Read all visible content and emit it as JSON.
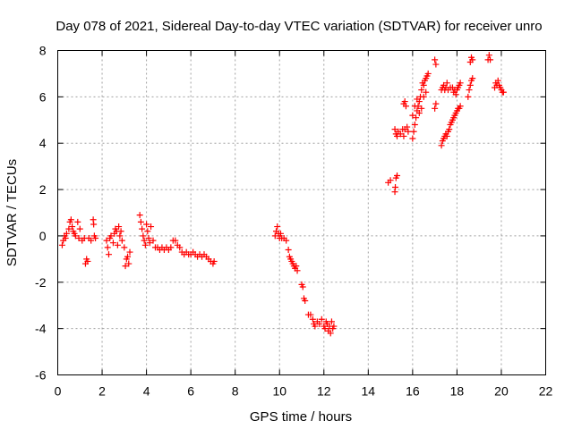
{
  "chart_data": {
    "type": "scatter",
    "title": "Day 078 of 2021, Sidereal Day-to-day VTEC variation (SDTVAR) for receiver unro",
    "xlabel": "GPS time / hours",
    "ylabel": "SDTVAR / TECUs",
    "xlim": [
      0,
      22
    ],
    "ylim": [
      -6,
      8
    ],
    "xticks": [
      0,
      2,
      4,
      6,
      8,
      10,
      12,
      14,
      16,
      18,
      20,
      22
    ],
    "yticks": [
      -6,
      -4,
      -2,
      0,
      2,
      4,
      6,
      8
    ],
    "xtick_labels": [
      "0",
      "2",
      "4",
      "6",
      "8",
      "10",
      "12",
      "14",
      "16",
      "18",
      "20",
      "22"
    ],
    "ytick_labels": [
      "-6",
      "-4",
      "-2",
      "0",
      "2",
      "4",
      "6",
      "8"
    ],
    "grid": true,
    "marker": "+",
    "color": "#ff0000",
    "series": [
      {
        "name": "SDTVAR",
        "points": [
          [
            0.2,
            -0.4
          ],
          [
            0.25,
            -0.2
          ],
          [
            0.3,
            0.0
          ],
          [
            0.35,
            -0.1
          ],
          [
            0.4,
            0.1
          ],
          [
            0.5,
            0.3
          ],
          [
            0.55,
            0.6
          ],
          [
            0.6,
            0.7
          ],
          [
            0.65,
            0.4
          ],
          [
            0.7,
            0.2
          ],
          [
            0.75,
            0.1
          ],
          [
            0.8,
            0.0
          ],
          [
            0.9,
            0.6
          ],
          [
            0.95,
            -0.1
          ],
          [
            1.0,
            0.3
          ],
          [
            1.1,
            -0.2
          ],
          [
            1.2,
            -0.1
          ],
          [
            1.25,
            -1.2
          ],
          [
            1.3,
            -1.0
          ],
          [
            1.35,
            -1.1
          ],
          [
            1.4,
            -0.1
          ],
          [
            1.5,
            -0.2
          ],
          [
            1.6,
            0.7
          ],
          [
            1.62,
            0.5
          ],
          [
            1.65,
            0.0
          ],
          [
            1.7,
            -0.1
          ],
          [
            2.2,
            -0.2
          ],
          [
            2.25,
            -0.5
          ],
          [
            2.3,
            -0.8
          ],
          [
            2.35,
            -0.1
          ],
          [
            2.4,
            0.0
          ],
          [
            2.5,
            -0.3
          ],
          [
            2.55,
            0.1
          ],
          [
            2.6,
            0.3
          ],
          [
            2.65,
            0.2
          ],
          [
            2.7,
            -0.4
          ],
          [
            2.75,
            0.4
          ],
          [
            2.8,
            0.0
          ],
          [
            2.85,
            0.2
          ],
          [
            2.9,
            -0.2
          ],
          [
            3.0,
            -0.5
          ],
          [
            3.05,
            -1.3
          ],
          [
            3.1,
            -1.0
          ],
          [
            3.15,
            -0.9
          ],
          [
            3.2,
            -1.2
          ],
          [
            3.25,
            -0.7
          ],
          [
            3.7,
            0.9
          ],
          [
            3.75,
            0.6
          ],
          [
            3.8,
            0.3
          ],
          [
            3.85,
            0.0
          ],
          [
            3.9,
            -0.2
          ],
          [
            3.95,
            -0.4
          ],
          [
            4.0,
            0.5
          ],
          [
            4.05,
            0.2
          ],
          [
            4.1,
            -0.1
          ],
          [
            4.15,
            -0.3
          ],
          [
            4.2,
            0.4
          ],
          [
            4.3,
            -0.2
          ],
          [
            4.4,
            -0.5
          ],
          [
            4.5,
            -0.5
          ],
          [
            4.6,
            -0.6
          ],
          [
            4.7,
            -0.5
          ],
          [
            4.8,
            -0.6
          ],
          [
            4.9,
            -0.5
          ],
          [
            5.0,
            -0.6
          ],
          [
            5.1,
            -0.5
          ],
          [
            5.2,
            -0.2
          ],
          [
            5.3,
            -0.2
          ],
          [
            5.4,
            -0.4
          ],
          [
            5.5,
            -0.5
          ],
          [
            5.6,
            -0.7
          ],
          [
            5.7,
            -0.8
          ],
          [
            5.8,
            -0.7
          ],
          [
            5.9,
            -0.8
          ],
          [
            6.0,
            -0.8
          ],
          [
            6.1,
            -0.7
          ],
          [
            6.2,
            -0.8
          ],
          [
            6.3,
            -0.9
          ],
          [
            6.4,
            -0.8
          ],
          [
            6.5,
            -0.9
          ],
          [
            6.6,
            -0.8
          ],
          [
            6.7,
            -0.9
          ],
          [
            6.8,
            -1.0
          ],
          [
            6.9,
            -1.1
          ],
          [
            7.0,
            -1.2
          ],
          [
            7.05,
            -1.1
          ],
          [
            9.8,
            0.0
          ],
          [
            9.85,
            0.2
          ],
          [
            9.9,
            0.4
          ],
          [
            9.95,
            0.1
          ],
          [
            10.0,
            -0.1
          ],
          [
            10.05,
            0.1
          ],
          [
            10.1,
            -0.1
          ],
          [
            10.2,
            -0.1
          ],
          [
            10.3,
            -0.2
          ],
          [
            10.4,
            -0.6
          ],
          [
            10.45,
            -0.9
          ],
          [
            10.5,
            -1.0
          ],
          [
            10.55,
            -1.1
          ],
          [
            10.6,
            -1.2
          ],
          [
            10.65,
            -1.3
          ],
          [
            10.7,
            -1.4
          ],
          [
            10.75,
            -1.3
          ],
          [
            10.8,
            -1.5
          ],
          [
            11.0,
            -2.1
          ],
          [
            11.05,
            -2.2
          ],
          [
            11.1,
            -2.7
          ],
          [
            11.15,
            -2.8
          ],
          [
            11.3,
            -3.4
          ],
          [
            11.4,
            -3.4
          ],
          [
            11.5,
            -3.6
          ],
          [
            11.55,
            -3.8
          ],
          [
            11.6,
            -3.9
          ],
          [
            11.7,
            -3.7
          ],
          [
            11.8,
            -3.8
          ],
          [
            11.9,
            -3.6
          ],
          [
            12.0,
            -3.9
          ],
          [
            12.05,
            -4.0
          ],
          [
            12.1,
            -3.7
          ],
          [
            12.15,
            -3.8
          ],
          [
            12.2,
            -4.1
          ],
          [
            12.25,
            -3.9
          ],
          [
            12.3,
            -4.2
          ],
          [
            12.35,
            -3.7
          ],
          [
            12.4,
            -4.0
          ],
          [
            12.45,
            -3.9
          ],
          [
            14.9,
            2.3
          ],
          [
            15.0,
            2.4
          ],
          [
            15.2,
            1.9
          ],
          [
            15.22,
            2.1
          ],
          [
            15.25,
            2.5
          ],
          [
            15.3,
            2.6
          ],
          [
            15.2,
            4.6
          ],
          [
            15.25,
            4.4
          ],
          [
            15.3,
            4.3
          ],
          [
            15.35,
            4.5
          ],
          [
            15.45,
            4.4
          ],
          [
            15.55,
            4.6
          ],
          [
            15.6,
            4.3
          ],
          [
            15.65,
            4.6
          ],
          [
            15.6,
            5.7
          ],
          [
            15.65,
            5.8
          ],
          [
            15.7,
            5.6
          ],
          [
            15.75,
            4.7
          ],
          [
            15.8,
            4.5
          ],
          [
            16.0,
            4.2
          ],
          [
            16.05,
            4.5
          ],
          [
            16.1,
            4.8
          ],
          [
            16.15,
            5.1
          ],
          [
            16.2,
            5.4
          ],
          [
            16.25,
            5.6
          ],
          [
            16.3,
            5.8
          ],
          [
            16.35,
            6.0
          ],
          [
            16.4,
            6.3
          ],
          [
            16.45,
            6.6
          ],
          [
            16.5,
            6.5
          ],
          [
            16.55,
            6.7
          ],
          [
            16.6,
            6.8
          ],
          [
            16.65,
            6.9
          ],
          [
            16.7,
            7.0
          ],
          [
            16.0,
            5.2
          ],
          [
            16.1,
            5.6
          ],
          [
            16.2,
            5.9
          ],
          [
            16.3,
            5.3
          ],
          [
            16.4,
            5.5
          ],
          [
            16.5,
            6.0
          ],
          [
            16.6,
            6.2
          ],
          [
            17.0,
            7.6
          ],
          [
            17.05,
            7.4
          ],
          [
            17.0,
            5.5
          ],
          [
            17.05,
            5.7
          ],
          [
            17.3,
            6.3
          ],
          [
            17.35,
            6.4
          ],
          [
            17.4,
            6.5
          ],
          [
            17.45,
            6.3
          ],
          [
            17.5,
            6.4
          ],
          [
            17.55,
            6.6
          ],
          [
            17.6,
            6.3
          ],
          [
            17.7,
            6.4
          ],
          [
            17.8,
            6.4
          ],
          [
            17.85,
            6.2
          ],
          [
            17.9,
            6.3
          ],
          [
            17.95,
            6.1
          ],
          [
            18.0,
            6.3
          ],
          [
            18.05,
            6.4
          ],
          [
            18.1,
            6.5
          ],
          [
            18.15,
            6.6
          ],
          [
            17.3,
            3.9
          ],
          [
            17.35,
            4.1
          ],
          [
            17.4,
            4.2
          ],
          [
            17.45,
            4.3
          ],
          [
            17.5,
            4.4
          ],
          [
            17.55,
            4.3
          ],
          [
            17.6,
            4.5
          ],
          [
            17.65,
            4.6
          ],
          [
            17.7,
            4.8
          ],
          [
            17.75,
            4.9
          ],
          [
            17.8,
            5.0
          ],
          [
            17.85,
            5.1
          ],
          [
            17.9,
            5.2
          ],
          [
            17.95,
            5.3
          ],
          [
            18.0,
            5.4
          ],
          [
            18.05,
            5.5
          ],
          [
            18.1,
            5.5
          ],
          [
            18.15,
            5.6
          ],
          [
            18.5,
            6.0
          ],
          [
            18.55,
            6.3
          ],
          [
            18.6,
            6.5
          ],
          [
            18.65,
            6.7
          ],
          [
            18.7,
            6.8
          ],
          [
            18.6,
            7.5
          ],
          [
            18.65,
            7.7
          ],
          [
            18.7,
            7.6
          ],
          [
            19.4,
            7.6
          ],
          [
            19.45,
            7.8
          ],
          [
            19.5,
            7.6
          ],
          [
            19.7,
            6.4
          ],
          [
            19.75,
            6.6
          ],
          [
            19.8,
            6.5
          ],
          [
            19.85,
            6.7
          ],
          [
            19.9,
            6.5
          ],
          [
            19.95,
            6.4
          ],
          [
            20.0,
            6.3
          ],
          [
            20.05,
            6.2
          ],
          [
            20.1,
            6.2
          ]
        ]
      }
    ]
  }
}
